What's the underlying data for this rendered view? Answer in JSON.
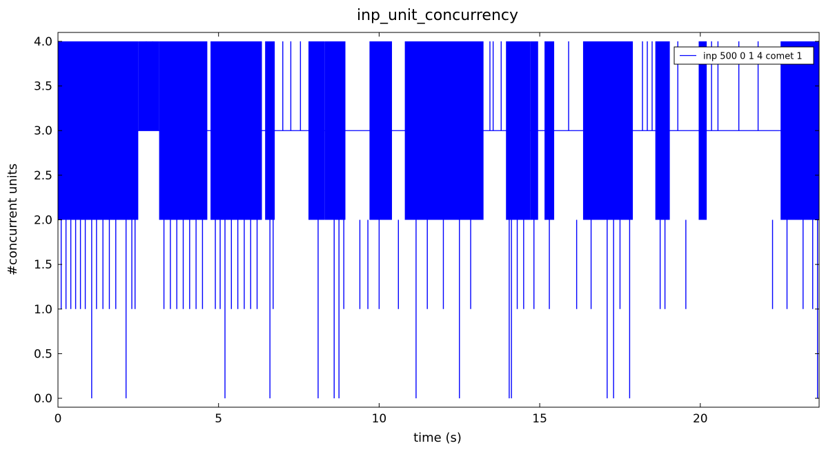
{
  "chart_data": {
    "type": "line",
    "title": "inp_unit_concurrency",
    "xlabel": "time (s)",
    "ylabel": "#concurrent units",
    "xlim": [
      0,
      23.7
    ],
    "ylim": [
      -0.1,
      4.1
    ],
    "x_ticks": [
      "0",
      "5",
      "10",
      "15",
      "20"
    ],
    "x_tick_values": [
      0,
      5,
      10,
      15,
      20
    ],
    "y_ticks": [
      "0.0",
      "0.5",
      "1.0",
      "1.5",
      "2.0",
      "2.5",
      "3.0",
      "3.5",
      "4.0"
    ],
    "y_tick_values": [
      0,
      0.5,
      1.0,
      1.5,
      2.0,
      2.5,
      3.0,
      3.5,
      4.0
    ],
    "grid": false,
    "legend_position": "top-right",
    "series_color": "#0000ff",
    "series": [
      {
        "name": "inp 500 0 1 4 comet 1",
        "baseline": 3,
        "dense_regions": [
          {
            "x0": 0.0,
            "x1": 2.5,
            "low": 2,
            "high": 4
          },
          {
            "x0": 3.15,
            "x1": 4.65,
            "low": 2,
            "high": 4
          },
          {
            "x0": 4.75,
            "x1": 6.35,
            "low": 2,
            "high": 4
          },
          {
            "x0": 7.8,
            "x1": 8.3,
            "low": 2,
            "high": 4
          },
          {
            "x0": 8.3,
            "x1": 8.95,
            "low": 2,
            "high": 4
          },
          {
            "x0": 9.7,
            "x1": 10.4,
            "low": 2,
            "high": 4
          },
          {
            "x0": 10.8,
            "x1": 13.25,
            "low": 2,
            "high": 4
          },
          {
            "x0": 13.95,
            "x1": 14.7,
            "low": 2,
            "high": 4
          },
          {
            "x0": 16.35,
            "x1": 17.9,
            "low": 2,
            "high": 4
          },
          {
            "x0": 18.6,
            "x1": 19.05,
            "low": 2,
            "high": 4
          },
          {
            "x0": 22.5,
            "x1": 23.7,
            "low": 2,
            "high": 4
          }
        ],
        "band_segments": [
          {
            "x0": 2.5,
            "x1": 3.15,
            "low": 3,
            "high": 4
          },
          {
            "x0": 6.45,
            "x1": 6.75,
            "low": 2,
            "high": 4
          },
          {
            "x0": 14.7,
            "x1": 14.95,
            "low": 2,
            "high": 4
          },
          {
            "x0": 15.15,
            "x1": 15.45,
            "low": 2,
            "high": 4
          },
          {
            "x0": 19.95,
            "x1": 20.2,
            "low": 2,
            "high": 4
          }
        ],
        "spikes": [
          {
            "x": 0.1,
            "y": 1
          },
          {
            "x": 0.25,
            "y": 1
          },
          {
            "x": 0.4,
            "y": 1
          },
          {
            "x": 0.55,
            "y": 1
          },
          {
            "x": 0.7,
            "y": 1
          },
          {
            "x": 0.85,
            "y": 1
          },
          {
            "x": 1.05,
            "y": 0
          },
          {
            "x": 1.2,
            "y": 1
          },
          {
            "x": 1.4,
            "y": 1
          },
          {
            "x": 1.6,
            "y": 1
          },
          {
            "x": 1.8,
            "y": 1
          },
          {
            "x": 2.12,
            "y": 0
          },
          {
            "x": 2.3,
            "y": 1
          },
          {
            "x": 2.4,
            "y": 1
          },
          {
            "x": 2.75,
            "y": 4
          },
          {
            "x": 2.95,
            "y": 4
          },
          {
            "x": 3.3,
            "y": 1
          },
          {
            "x": 3.5,
            "y": 1
          },
          {
            "x": 3.7,
            "y": 1
          },
          {
            "x": 3.9,
            "y": 1
          },
          {
            "x": 4.1,
            "y": 1
          },
          {
            "x": 4.3,
            "y": 1
          },
          {
            "x": 4.5,
            "y": 1
          },
          {
            "x": 4.9,
            "y": 1
          },
          {
            "x": 5.05,
            "y": 1
          },
          {
            "x": 5.2,
            "y": 0
          },
          {
            "x": 5.4,
            "y": 1
          },
          {
            "x": 5.6,
            "y": 1
          },
          {
            "x": 5.8,
            "y": 1
          },
          {
            "x": 6.0,
            "y": 1
          },
          {
            "x": 6.2,
            "y": 1
          },
          {
            "x": 6.6,
            "y": 0
          },
          {
            "x": 6.7,
            "y": 1
          },
          {
            "x": 7.0,
            "y": 4
          },
          {
            "x": 7.25,
            "y": 4
          },
          {
            "x": 7.55,
            "y": 4
          },
          {
            "x": 8.1,
            "y": 0
          },
          {
            "x": 8.6,
            "y": 0
          },
          {
            "x": 8.75,
            "y": 0
          },
          {
            "x": 8.9,
            "y": 1
          },
          {
            "x": 9.2,
            "y": 2
          },
          {
            "x": 9.4,
            "y": 1
          },
          {
            "x": 9.65,
            "y": 1
          },
          {
            "x": 10.0,
            "y": 1
          },
          {
            "x": 10.6,
            "y": 1
          },
          {
            "x": 11.15,
            "y": 0
          },
          {
            "x": 11.5,
            "y": 1
          },
          {
            "x": 12.0,
            "y": 1
          },
          {
            "x": 12.5,
            "y": 0
          },
          {
            "x": 12.85,
            "y": 1
          },
          {
            "x": 13.45,
            "y": 4
          },
          {
            "x": 13.55,
            "y": 4
          },
          {
            "x": 13.65,
            "y": 2
          },
          {
            "x": 13.8,
            "y": 4
          },
          {
            "x": 14.05,
            "y": 0
          },
          {
            "x": 14.12,
            "y": 0
          },
          {
            "x": 14.3,
            "y": 1
          },
          {
            "x": 14.5,
            "y": 1
          },
          {
            "x": 14.82,
            "y": 1
          },
          {
            "x": 15.3,
            "y": 1
          },
          {
            "x": 15.75,
            "y": 2
          },
          {
            "x": 15.9,
            "y": 4
          },
          {
            "x": 16.15,
            "y": 1
          },
          {
            "x": 16.25,
            "y": 2
          },
          {
            "x": 16.6,
            "y": 1
          },
          {
            "x": 17.1,
            "y": 0
          },
          {
            "x": 17.3,
            "y": 0
          },
          {
            "x": 17.5,
            "y": 1
          },
          {
            "x": 17.8,
            "y": 0
          },
          {
            "x": 18.0,
            "y": 2
          },
          {
            "x": 18.2,
            "y": 4
          },
          {
            "x": 18.35,
            "y": 4
          },
          {
            "x": 18.5,
            "y": 4
          },
          {
            "x": 18.75,
            "y": 1
          },
          {
            "x": 18.9,
            "y": 1
          },
          {
            "x": 19.3,
            "y": 4
          },
          {
            "x": 19.45,
            "y": 2
          },
          {
            "x": 19.55,
            "y": 1
          },
          {
            "x": 20.35,
            "y": 4
          },
          {
            "x": 20.55,
            "y": 4
          },
          {
            "x": 20.75,
            "y": 2
          },
          {
            "x": 21.2,
            "y": 4
          },
          {
            "x": 21.8,
            "y": 4
          },
          {
            "x": 22.25,
            "y": 1
          },
          {
            "x": 22.7,
            "y": 1
          },
          {
            "x": 23.2,
            "y": 1
          },
          {
            "x": 23.5,
            "y": 1
          },
          {
            "x": 23.65,
            "y": 0
          }
        ]
      }
    ]
  }
}
